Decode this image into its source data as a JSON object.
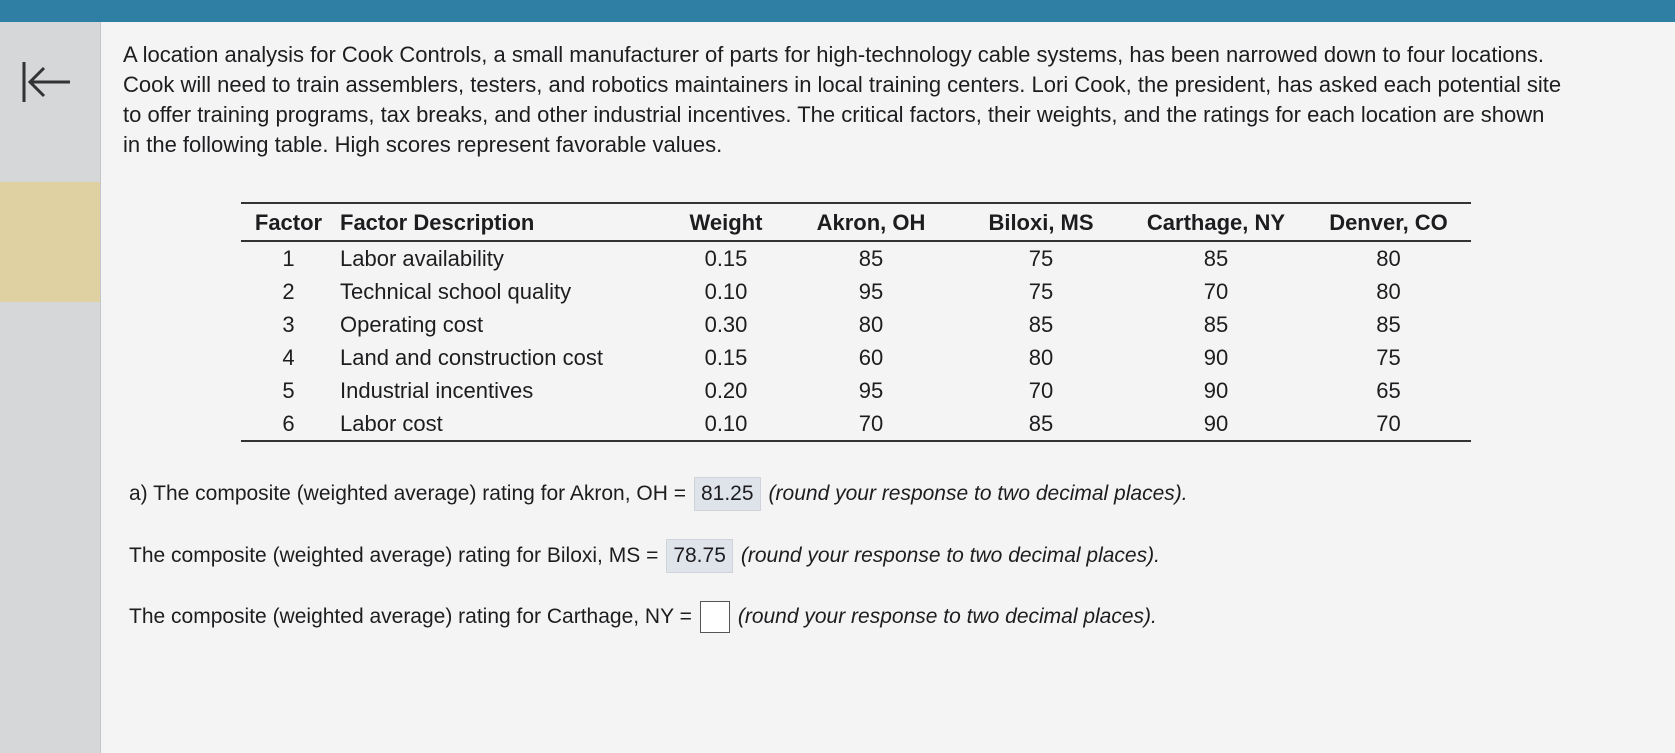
{
  "intro": "A location analysis for Cook Controls, a small manufacturer of parts for high-technology cable systems, has been narrowed down to four locations. Cook will need to train assemblers, testers, and robotics maintainers in local training centers. Lori Cook, the president, has asked each potential site to offer training programs, tax breaks, and other industrial incentives. The critical factors, their weights, and the ratings for each location are shown in the following table. High scores represent favorable values.",
  "table": {
    "headers": [
      "Factor",
      "Factor Description",
      "Weight",
      "Akron, OH",
      "Biloxi, MS",
      "Carthage, NY",
      "Denver, CO"
    ],
    "rows": [
      [
        "1",
        "Labor availability",
        "0.15",
        "85",
        "75",
        "85",
        "80"
      ],
      [
        "2",
        "Technical school quality",
        "0.10",
        "95",
        "75",
        "70",
        "80"
      ],
      [
        "3",
        "Operating cost",
        "0.30",
        "80",
        "85",
        "85",
        "85"
      ],
      [
        "4",
        "Land and construction cost",
        "0.15",
        "60",
        "80",
        "90",
        "75"
      ],
      [
        "5",
        "Industrial incentives",
        "0.20",
        "95",
        "70",
        "90",
        "65"
      ],
      [
        "6",
        "Labor cost",
        "0.10",
        "70",
        "85",
        "90",
        "70"
      ]
    ]
  },
  "questions": [
    {
      "prompt": "a) The composite (weighted average) rating for Akron, OH =",
      "answer": "81.25",
      "note": "(round your response to two decimal places)."
    },
    {
      "prompt": "The composite (weighted average) rating for Biloxi, MS =",
      "answer": "78.75",
      "note": "(round your response to two decimal places)."
    },
    {
      "prompt": "The composite (weighted average) rating for Carthage, NY =",
      "note": "(round your response to two decimal places)."
    }
  ]
}
